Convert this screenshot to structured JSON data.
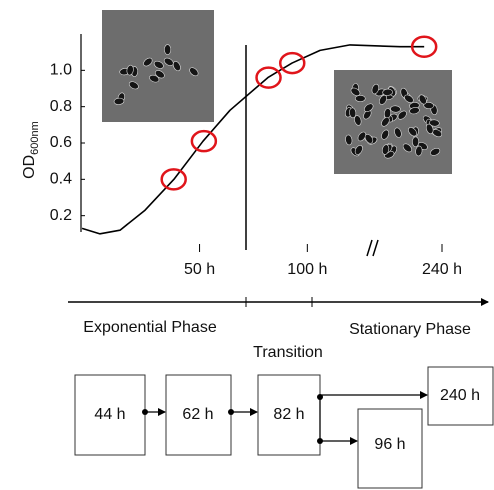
{
  "chart_data": {
    "type": "line",
    "ylabel": "OD",
    "ylabel_sub": "600nm",
    "ylim": [
      0,
      1.2
    ],
    "yticks": [
      0.2,
      0.4,
      0.6,
      0.8,
      {
        "value": 1,
        "label": "1.0"
      }
    ],
    "xlim": [
      -5,
      240
    ],
    "xbreak": 130,
    "xticks": [
      {
        "value": 50,
        "label": "50 h"
      },
      {
        "value": 100,
        "label": "100 h"
      },
      {
        "value": 240,
        "label": "240 h"
      }
    ],
    "curve": {
      "color": "#000000",
      "x": [
        -4.5,
        3.8,
        13.1,
        24.7,
        38.1,
        51.6,
        64.1,
        81.7,
        92.9,
        105.9,
        119.8,
        174,
        212
      ],
      "values": [
        0.13,
        0.1,
        0.12,
        0.23,
        0.4,
        0.61,
        0.78,
        0.96,
        1.04,
        1.11,
        1.14,
        1.13,
        1.13
      ]
    },
    "points": {
      "color": "#e0151b",
      "x": [
        38,
        52,
        82,
        93,
        212
      ],
      "values": [
        0.4,
        0.61,
        0.96,
        1.04,
        1.13
      ]
    }
  },
  "timeline": {
    "left": "Exponential Phase",
    "middle": "Transition",
    "right": "Stationary Phase"
  },
  "diagram": {
    "boxes": [
      "44 h",
      "62 h",
      "82 h",
      "96 h",
      "240 h"
    ]
  }
}
